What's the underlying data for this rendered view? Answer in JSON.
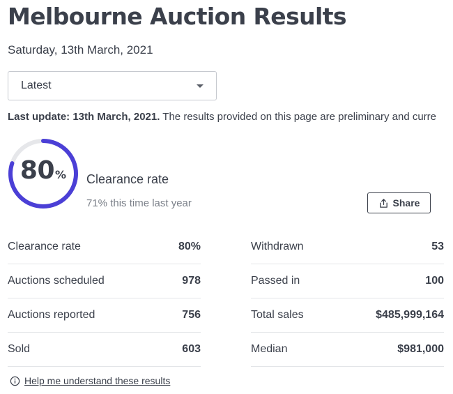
{
  "header": {
    "title": "Melbourne Auction Results",
    "date": "Saturday, 13th March, 2021"
  },
  "filter": {
    "selected": "Latest"
  },
  "notice": {
    "label": "Last update: 13th March, 2021.",
    "text": " The results provided on this page are preliminary and curre"
  },
  "gauge": {
    "value": "80",
    "unit": "%",
    "fraction": 0.8,
    "track_color": "#e6e7ea",
    "fill_color": "#4b3fd6"
  },
  "clearance": {
    "label": "Clearance rate",
    "last_year": "71% this time last year"
  },
  "share": {
    "label": "Share",
    "icon": "share-upload-icon"
  },
  "stats_left": [
    {
      "label": "Clearance rate",
      "value": "80%"
    },
    {
      "label": "Auctions scheduled",
      "value": "978"
    },
    {
      "label": "Auctions reported",
      "value": "756"
    },
    {
      "label": "Sold",
      "value": "603"
    }
  ],
  "stats_right": [
    {
      "label": "Withdrawn",
      "value": "53"
    },
    {
      "label": "Passed in",
      "value": "100"
    },
    {
      "label": "Total sales",
      "value": "$485,999,164"
    },
    {
      "label": "Median",
      "value": "$981,000"
    }
  ],
  "help": {
    "label": "Help me understand these results",
    "icon": "info-icon"
  }
}
